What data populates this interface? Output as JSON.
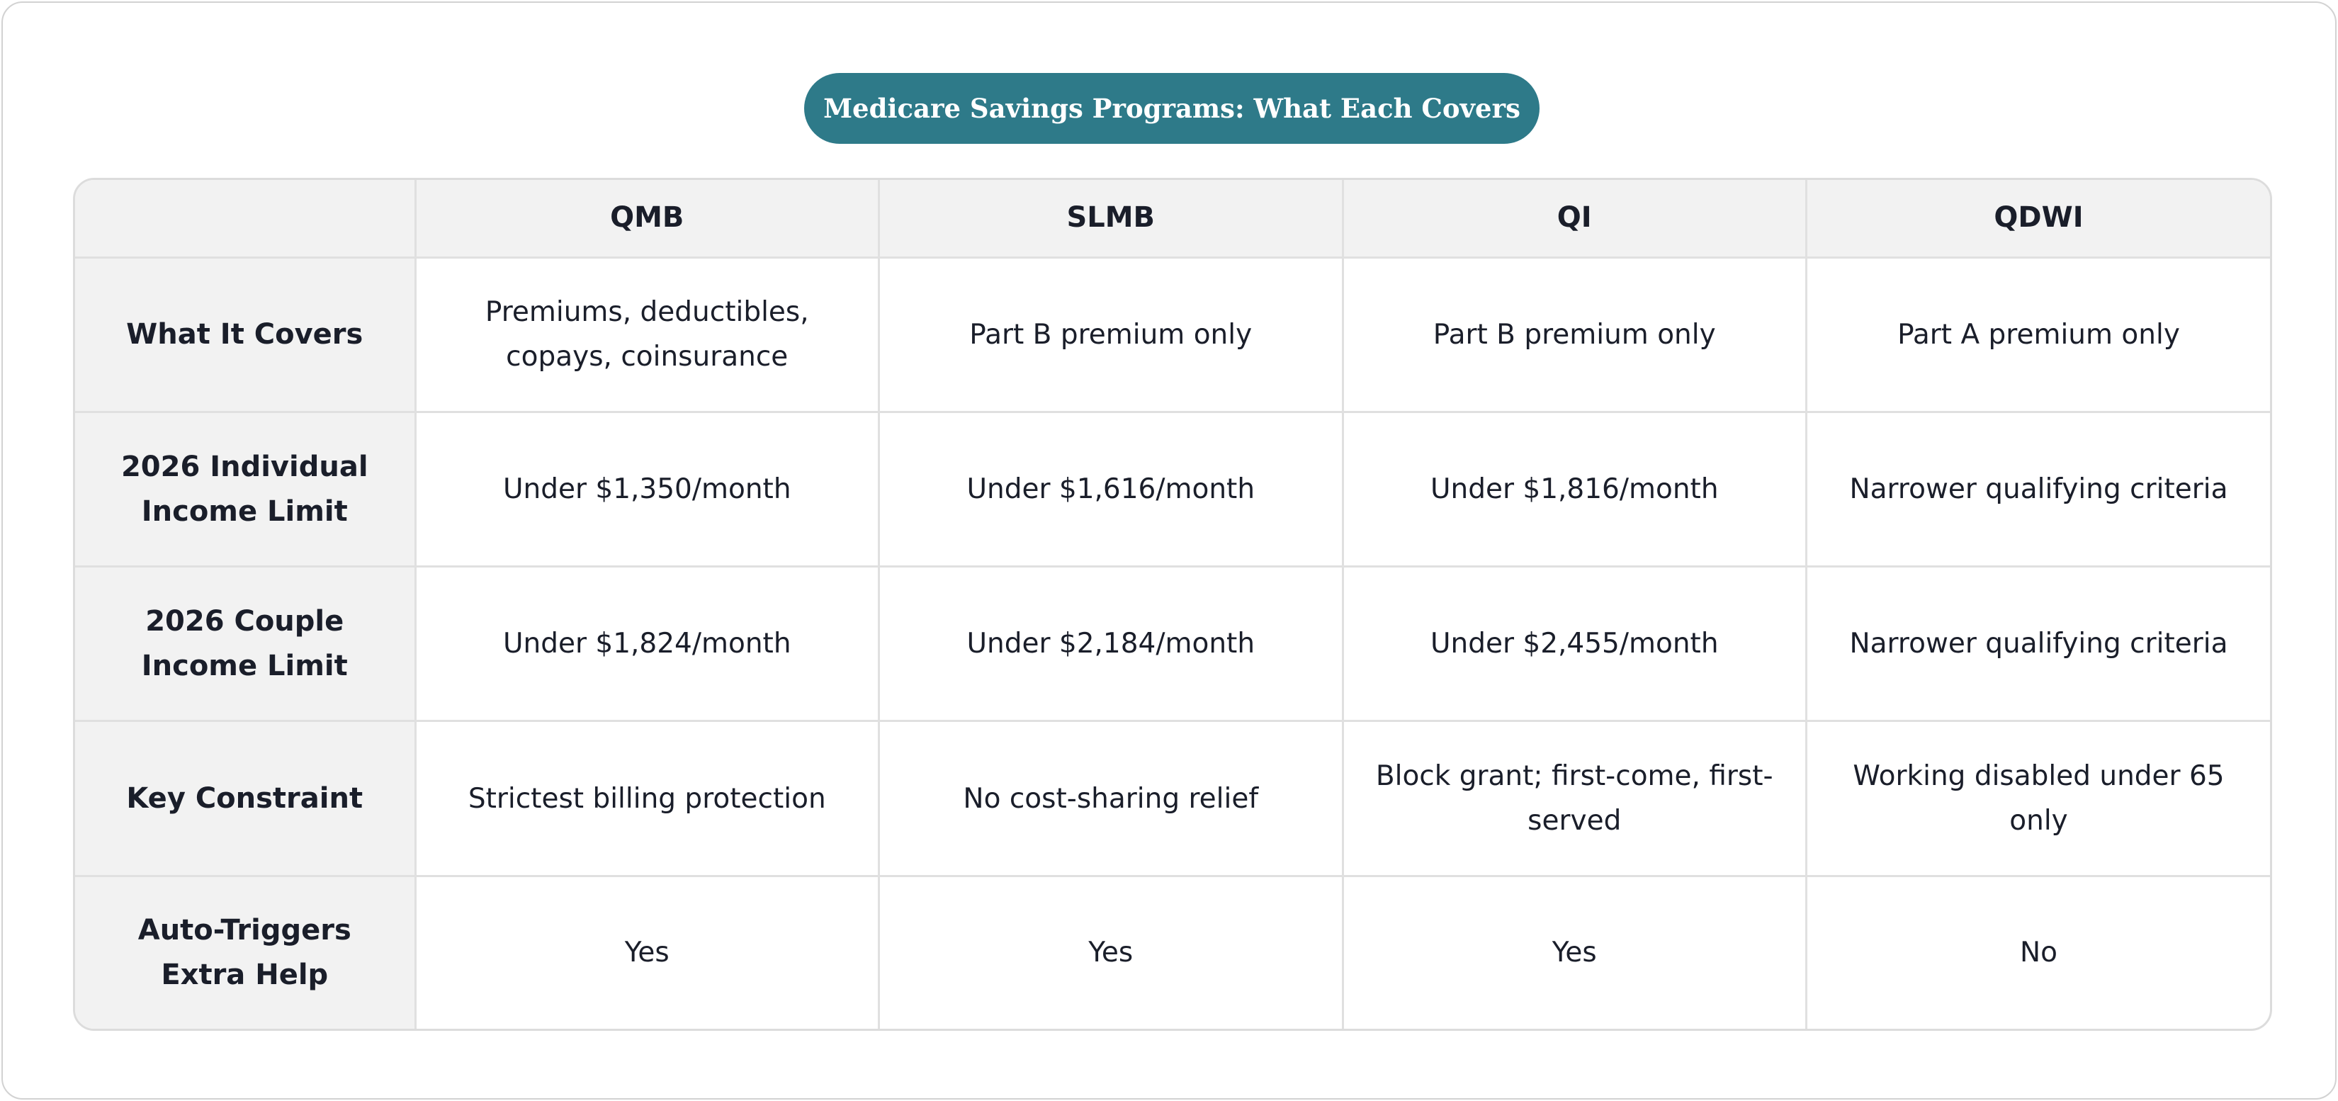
{
  "title": "Medicare Savings Programs: What Each Covers",
  "table": {
    "columns": [
      "",
      "QMB",
      "SLMB",
      "QI",
      "QDWI"
    ],
    "rows": [
      {
        "label": "What It Covers",
        "cells": [
          "Premiums, deductibles, copays, coinsurance",
          "Part B premium only",
          "Part B premium only",
          "Part A premium only"
        ]
      },
      {
        "label": "2026 Individual Income Limit",
        "cells": [
          "Under $1,350/month",
          "Under $1,616/month",
          "Under $1,816/month",
          "Narrower qualifying criteria"
        ]
      },
      {
        "label": "2026 Couple Income Limit",
        "cells": [
          "Under $1,824/month",
          "Under $2,184/month",
          "Under $2,455/month",
          "Narrower qualifying criteria"
        ]
      },
      {
        "label": "Key Constraint",
        "cells": [
          "Strictest billing protection",
          "No cost-sharing relief",
          "Block grant; first-come, first-served",
          "Working disabled under 65 only"
        ]
      },
      {
        "label": "Auto-Triggers Extra Help",
        "cells": [
          "Yes",
          "Yes",
          "Yes",
          "No"
        ]
      }
    ]
  },
  "colors": {
    "title_pill": "#2e7a89",
    "header_bg": "#f2f2f2",
    "border": "#e0e0e0",
    "text": "#1a1e2a"
  }
}
